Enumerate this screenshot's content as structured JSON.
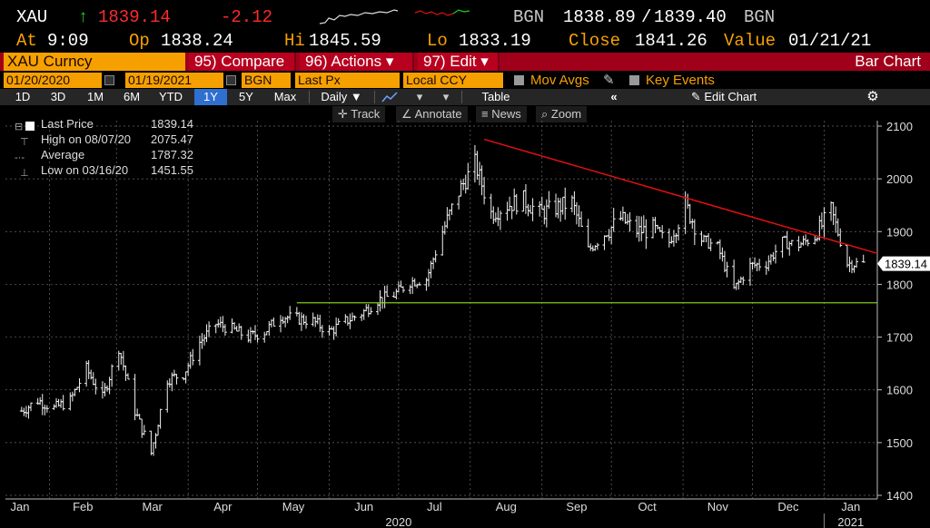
{
  "quote": {
    "ticker": "XAU",
    "arrow": "↑",
    "last": "1839.14",
    "change": "-2.12",
    "source1": "BGN",
    "bid": "1838.89",
    "slash": "/",
    "ask": "1839.40",
    "source2": "BGN",
    "at_label": "At",
    "at_time": "9:09",
    "op_label": "Op",
    "op": "1838.24",
    "hi_label": "Hi",
    "hi": "1845.59",
    "lo_label": "Lo",
    "lo": "1833.19",
    "close_label": "Close",
    "close": "1841.26",
    "value_label": "Value",
    "value_date": "01/21/21"
  },
  "toolbar": {
    "security": "XAU Curncy",
    "compare": "95) Compare",
    "actions": "96) Actions ▾",
    "edit": "97) Edit ▾",
    "chart_type": "Bar Chart"
  },
  "options": {
    "start_date": "01/20/2020",
    "end_date": "01/19/2021",
    "source": "BGN",
    "field": "Last Px",
    "currency": "Local CCY",
    "mov_avgs": "Mov Avgs",
    "key_events": "Key Events"
  },
  "ranges": [
    "1D",
    "3D",
    "1M",
    "6M",
    "YTD",
    "1Y",
    "5Y",
    "Max"
  ],
  "active_range": "1Y",
  "period": "Daily ▼",
  "table_label": "Table",
  "edit_chart": "Edit Chart",
  "tools": [
    "Track",
    "Annotate",
    "News",
    "Zoom"
  ],
  "legend": {
    "last_label": "Last Price",
    "last_value": "1839.14",
    "high_label": "High on 08/07/20",
    "high_value": "2075.47",
    "avg_label": "Average",
    "avg_value": "1787.32",
    "low_label": "Low on 03/16/20",
    "low_value": "1451.55"
  },
  "price_tag": "1839.14",
  "colors": {
    "background": "#000000",
    "accent": "#f6a000",
    "function_bar": "#a0001a",
    "trendline": "#e01010",
    "support": "#7fc81a",
    "up": "#19d119",
    "down": "#ff2a2a"
  },
  "chart_data": {
    "type": "bar",
    "subtype": "ohlc",
    "y_axis": {
      "ticks": [
        1400,
        1500,
        1600,
        1700,
        1800,
        1900,
        2000,
        2100
      ],
      "range": [
        1400,
        2100
      ],
      "position": "right"
    },
    "x_axis": {
      "month_labels": [
        "Jan",
        "Feb",
        "Mar",
        "Apr",
        "May",
        "Jun",
        "Jul",
        "Aug",
        "Sep",
        "Oct",
        "Nov",
        "Dec",
        "Jan"
      ],
      "year_labels": [
        "2020",
        "2021"
      ]
    },
    "grid": true,
    "trendline": {
      "from": {
        "date": "2020-08-07",
        "price": 2075
      },
      "to": {
        "date": "2021-01-19",
        "price": 1865
      }
    },
    "support_line": {
      "price": 1765,
      "from_date": "2020-05-18",
      "to_date": "2021-01-19"
    },
    "series": [
      {
        "x": "2020-01-20",
        "close": 1560
      },
      {
        "x": "2020-01-27",
        "close": 1580
      },
      {
        "x": "2020-02-03",
        "close": 1565
      },
      {
        "x": "2020-02-10",
        "close": 1580
      },
      {
        "x": "2020-02-17",
        "close": 1640
      },
      {
        "x": "2020-02-24",
        "close": 1585
      },
      {
        "x": "2020-03-02",
        "close": 1680
      },
      {
        "x": "2020-03-09",
        "close": 1560
      },
      {
        "x": "2020-03-16",
        "close": 1480
      },
      {
        "x": "2020-03-23",
        "close": 1620
      },
      {
        "x": "2020-03-30",
        "close": 1630
      },
      {
        "x": "2020-04-06",
        "close": 1690
      },
      {
        "x": "2020-04-13",
        "close": 1725
      },
      {
        "x": "2020-04-20",
        "close": 1715
      },
      {
        "x": "2020-04-27",
        "close": 1700
      },
      {
        "x": "2020-05-04",
        "close": 1710
      },
      {
        "x": "2020-05-11",
        "close": 1740
      },
      {
        "x": "2020-05-18",
        "close": 1735
      },
      {
        "x": "2020-05-25",
        "close": 1730
      },
      {
        "x": "2020-06-01",
        "close": 1710
      },
      {
        "x": "2020-06-08",
        "close": 1730
      },
      {
        "x": "2020-06-15",
        "close": 1745
      },
      {
        "x": "2020-06-22",
        "close": 1770
      },
      {
        "x": "2020-06-29",
        "close": 1780
      },
      {
        "x": "2020-07-06",
        "close": 1805
      },
      {
        "x": "2020-07-13",
        "close": 1810
      },
      {
        "x": "2020-07-20",
        "close": 1900
      },
      {
        "x": "2020-07-27",
        "close": 1975
      },
      {
        "x": "2020-08-03",
        "close": 2030
      },
      {
        "x": "2020-08-10",
        "close": 1935
      },
      {
        "x": "2020-08-17",
        "close": 1950
      },
      {
        "x": "2020-08-24",
        "close": 1960
      },
      {
        "x": "2020-08-31",
        "close": 1935
      },
      {
        "x": "2020-09-07",
        "close": 1945
      },
      {
        "x": "2020-09-14",
        "close": 1955
      },
      {
        "x": "2020-09-21",
        "close": 1865
      },
      {
        "x": "2020-09-28",
        "close": 1895
      },
      {
        "x": "2020-10-05",
        "close": 1925
      },
      {
        "x": "2020-10-12",
        "close": 1900
      },
      {
        "x": "2020-10-19",
        "close": 1905
      },
      {
        "x": "2020-10-26",
        "close": 1880
      },
      {
        "x": "2020-11-02",
        "close": 1950
      },
      {
        "x": "2020-11-09",
        "close": 1885
      },
      {
        "x": "2020-11-16",
        "close": 1870
      },
      {
        "x": "2020-11-23",
        "close": 1790
      },
      {
        "x": "2020-11-30",
        "close": 1835
      },
      {
        "x": "2020-12-07",
        "close": 1840
      },
      {
        "x": "2020-12-14",
        "close": 1880
      },
      {
        "x": "2020-12-21",
        "close": 1875
      },
      {
        "x": "2020-12-28",
        "close": 1890
      },
      {
        "x": "2021-01-04",
        "close": 1940
      },
      {
        "x": "2021-01-11",
        "close": 1840
      },
      {
        "x": "2021-01-19",
        "close": 1839
      }
    ]
  }
}
